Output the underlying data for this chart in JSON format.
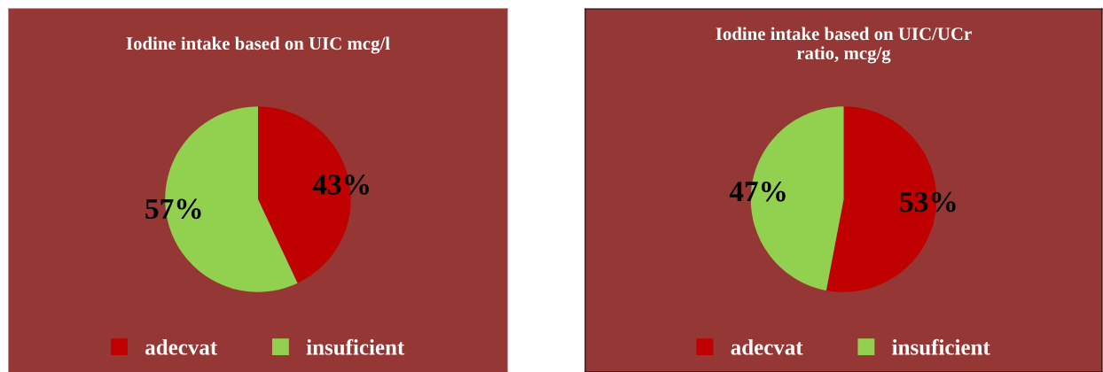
{
  "chart_data": [
    {
      "type": "pie",
      "title": "Iodine intake based on UIC mcg/l",
      "categories": [
        "adecvat",
        "insuficient"
      ],
      "values": [
        43,
        57
      ],
      "colors": [
        "#c00000",
        "#92d050"
      ],
      "value_labels": [
        "43%",
        "57%"
      ],
      "legend": "bottom"
    },
    {
      "type": "pie",
      "title": "Iodine intake based on UIC/UCr\nratio, mcg/g",
      "categories": [
        "adecvat",
        "insuficient"
      ],
      "values": [
        53,
        47
      ],
      "colors": [
        "#c00000",
        "#92d050"
      ],
      "value_labels": [
        "53%",
        "47%"
      ],
      "legend": "bottom"
    }
  ]
}
